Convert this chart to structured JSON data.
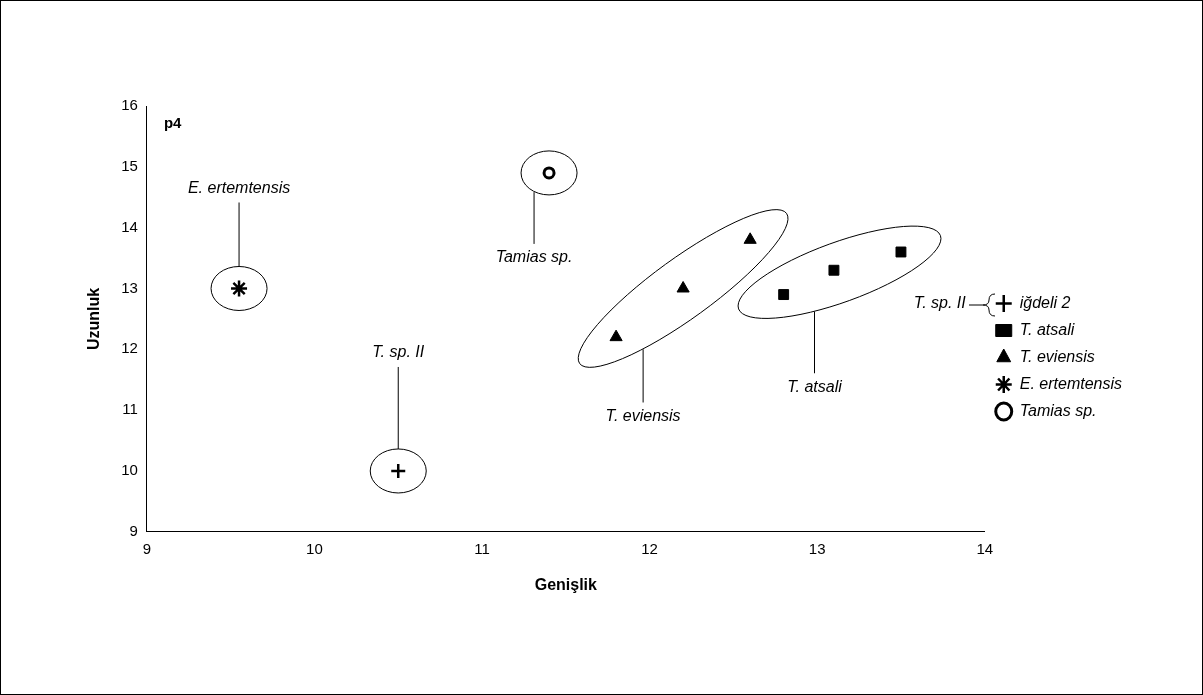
{
  "chart_data": {
    "type": "scatter",
    "xlabel": "Genişlik",
    "ylabel": "Uzunluk",
    "xlim": [
      9,
      14
    ],
    "xticks": [
      9,
      10,
      11,
      12,
      13,
      14
    ],
    "ylim": [
      9,
      16
    ],
    "yticks": [
      9,
      10,
      11,
      12,
      13,
      14,
      15,
      16
    ],
    "grid": false,
    "legend": "right",
    "series": [
      {
        "name": "iğdeli 2",
        "color": "#000000",
        "marker": "cross",
        "x": [
          10.5
        ],
        "values": [
          10.0
        ]
      },
      {
        "name": "T. atsali",
        "color": "#000000",
        "marker": "square",
        "x": [
          12.8,
          13.1,
          13.5
        ],
        "values": [
          12.9,
          13.3,
          13.6
        ]
      },
      {
        "name": "T. eviensis",
        "color": "#000000",
        "marker": "triangle",
        "x": [
          11.8,
          12.2,
          12.6
        ],
        "values": [
          12.2,
          13.0,
          13.8
        ]
      },
      {
        "name": "E. ertemtensis",
        "color": "#000000",
        "x": [
          9.55
        ],
        "values": [
          13.0
        ]
      },
      {
        "name": "Tamias sp.",
        "color": "#000000",
        "marker": "circle",
        "x": [
          11.4
        ],
        "values": [
          14.9
        ]
      }
    ],
    "annotations": [
      "p4",
      "E. ertemtensis",
      "Tamias sp.",
      "T. sp. II",
      "T. eviensis",
      "T. atsali",
      "T. sp. II"
    ]
  }
}
